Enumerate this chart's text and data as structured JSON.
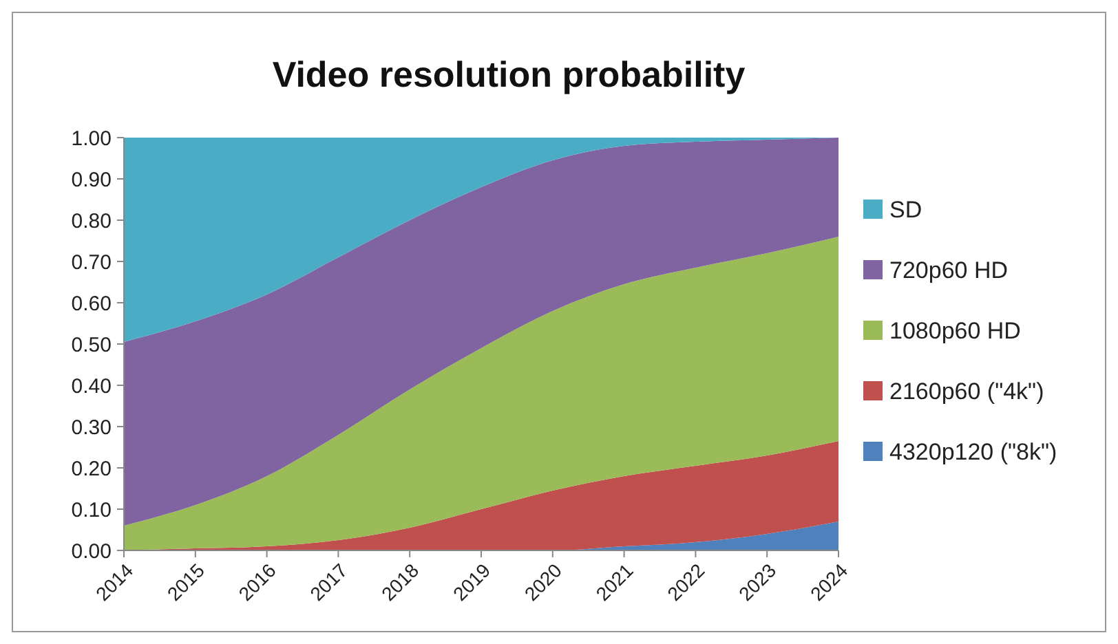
{
  "chart_data": {
    "type": "area",
    "title": "Video resolution probability",
    "stacked": true,
    "categories": [
      "2014",
      "2015",
      "2016",
      "2017",
      "2018",
      "2019",
      "2020",
      "2021",
      "2022",
      "2023",
      "2024"
    ],
    "series": [
      {
        "name": "4320p120 (\"8k\")",
        "color": "#4f81bd",
        "values": [
          0,
          0,
          0,
          0,
          0,
          0,
          0,
          0.01,
          0.02,
          0.04,
          0.07
        ]
      },
      {
        "name": "2160p60 (\"4k\")",
        "color": "#c0504d",
        "values": [
          0,
          0.005,
          0.01,
          0.025,
          0.055,
          0.1,
          0.145,
          0.17,
          0.185,
          0.19,
          0.195
        ]
      },
      {
        "name": "1080p60 HD",
        "color": "#9bbb59",
        "values": [
          0.06,
          0.105,
          0.17,
          0.255,
          0.335,
          0.39,
          0.435,
          0.465,
          0.48,
          0.49,
          0.495
        ]
      },
      {
        "name": "720p60 HD",
        "color": "#8064a2",
        "values": [
          0.445,
          0.445,
          0.44,
          0.43,
          0.41,
          0.39,
          0.365,
          0.335,
          0.305,
          0.275,
          0.24
        ]
      },
      {
        "name": "SD",
        "color": "#4bacc6",
        "values": [
          0.495,
          0.445,
          0.38,
          0.29,
          0.2,
          0.12,
          0.055,
          0.02,
          0.01,
          0.005,
          0
        ]
      }
    ],
    "ylim": [
      0,
      1
    ],
    "yticks": [
      {
        "value": 0,
        "label": "0.00"
      },
      {
        "value": 0.1,
        "label": "0.10"
      },
      {
        "value": 0.2,
        "label": "0.20"
      },
      {
        "value": 0.3,
        "label": "0.30"
      },
      {
        "value": 0.4,
        "label": "0.40"
      },
      {
        "value": 0.5,
        "label": "0.50"
      },
      {
        "value": 0.6,
        "label": "0.60"
      },
      {
        "value": 0.7,
        "label": "0.70"
      },
      {
        "value": 0.8,
        "label": "0.80"
      },
      {
        "value": 0.9,
        "label": "0.90"
      },
      {
        "value": 1,
        "label": "1.00"
      }
    ],
    "grid": false,
    "legend": "right"
  }
}
